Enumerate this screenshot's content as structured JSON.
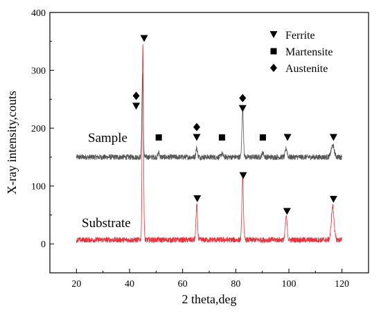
{
  "chart_data": {
    "type": "line",
    "xlabel": "2 theta,deg",
    "ylabel": "X-ray intensity,couts",
    "xlim": [
      10,
      130
    ],
    "ylim": [
      -50,
      400
    ],
    "xticks": [
      20,
      40,
      60,
      80,
      100,
      120
    ],
    "yticks": [
      0,
      100,
      200,
      300,
      400
    ],
    "grid": false,
    "legend_position": "top-right",
    "legend": [
      {
        "label": "Ferrite",
        "marker": "triangle-down"
      },
      {
        "label": "Martensite",
        "marker": "square"
      },
      {
        "label": "Austenite",
        "marker": "diamond"
      }
    ],
    "series": [
      {
        "name": "Sample",
        "color": "#555555",
        "x_range": [
          20,
          120
        ],
        "baseline": 150,
        "noise": 3,
        "peaks": [
          {
            "x": 44.9,
            "height": 145,
            "width": 0.35
          },
          {
            "x": 51.0,
            "height": 8,
            "width": 0.4
          },
          {
            "x": 65.3,
            "height": 16,
            "width": 0.4
          },
          {
            "x": 74.8,
            "height": 6,
            "width": 0.5
          },
          {
            "x": 82.6,
            "height": 82,
            "width": 0.4
          },
          {
            "x": 90.2,
            "height": 8,
            "width": 0.5
          },
          {
            "x": 99.0,
            "height": 15,
            "width": 0.5
          },
          {
            "x": 116.5,
            "height": 20,
            "width": 0.8
          }
        ],
        "markers": [
          {
            "type": "triangle-down",
            "x": 42.5,
            "y": 238
          },
          {
            "type": "diamond",
            "x": 42.5,
            "y": 256
          },
          {
            "type": "triangle-down",
            "x": 45.5,
            "y": 355
          },
          {
            "type": "square",
            "x": 51.0,
            "y": 184
          },
          {
            "type": "triangle-down",
            "x": 65.3,
            "y": 184
          },
          {
            "type": "diamond",
            "x": 65.3,
            "y": 202
          },
          {
            "type": "square",
            "x": 74.8,
            "y": 184
          },
          {
            "type": "triangle-down",
            "x": 82.6,
            "y": 234
          },
          {
            "type": "diamond",
            "x": 82.6,
            "y": 252
          },
          {
            "type": "square",
            "x": 90.2,
            "y": 184
          },
          {
            "type": "triangle-down",
            "x": 99.5,
            "y": 184
          },
          {
            "type": "triangle-down",
            "x": 116.8,
            "y": 184
          }
        ]
      },
      {
        "name": "Substrate",
        "color": "#e8303a",
        "x_range": [
          20,
          120
        ],
        "baseline": 7,
        "noise": 3,
        "peaks": [
          {
            "x": 45.0,
            "height": 338,
            "width": 0.35
          },
          {
            "x": 65.3,
            "height": 60,
            "width": 0.4
          },
          {
            "x": 82.6,
            "height": 110,
            "width": 0.4
          },
          {
            "x": 99.0,
            "height": 40,
            "width": 0.5
          },
          {
            "x": 116.5,
            "height": 58,
            "width": 0.7
          }
        ],
        "markers": [
          {
            "type": "triangle-down",
            "x": 65.5,
            "y": 78
          },
          {
            "type": "triangle-down",
            "x": 82.8,
            "y": 118
          },
          {
            "type": "triangle-down",
            "x": 99.3,
            "y": 56
          },
          {
            "type": "triangle-down",
            "x": 116.8,
            "y": 77
          }
        ]
      }
    ]
  }
}
